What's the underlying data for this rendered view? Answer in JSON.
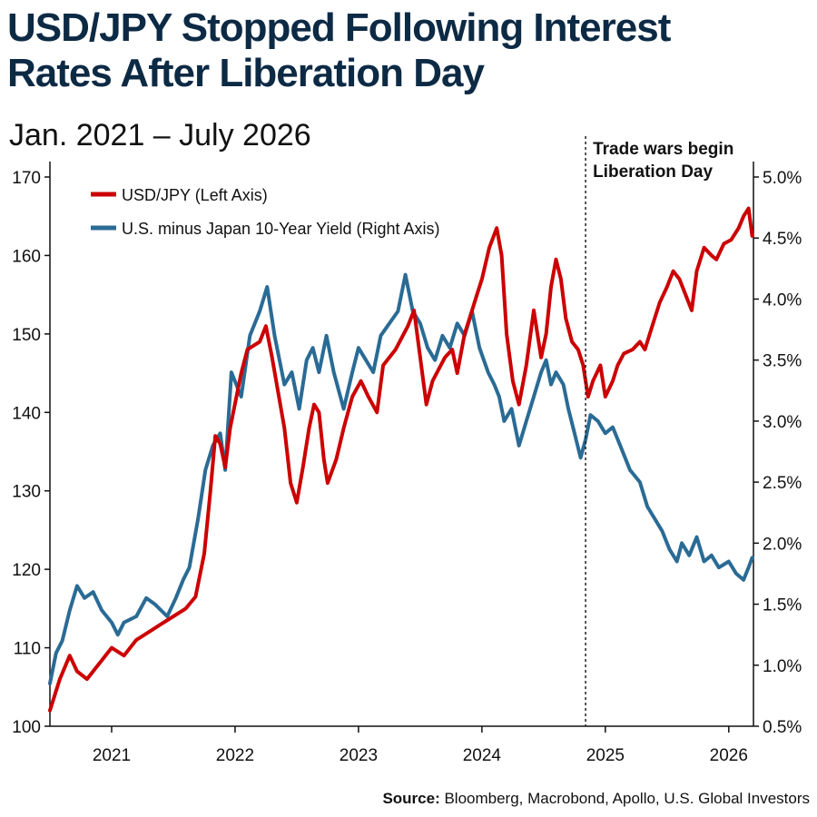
{
  "chart_data": {
    "type": "line",
    "title_line1": "USD/JPY Stopped Following Interest",
    "title_line2": "Rates After Liberation Day",
    "subtitle": "Jan. 2021 – July 2026",
    "source_label": "Source:",
    "source_text": " Bloomberg, Macrobond, Apollo, U.S. Global Investors",
    "x_range": [
      2020.5,
      2026.2
    ],
    "x_ticks": [
      "2021",
      "2022",
      "2023",
      "2024",
      "2025",
      "2026"
    ],
    "y_left": {
      "range": [
        100,
        172
      ],
      "ticks": [
        "100",
        "110",
        "120",
        "130",
        "140",
        "150",
        "160",
        "170"
      ]
    },
    "y_right": {
      "range": [
        0.5,
        5.1
      ],
      "ticks": [
        "0.5%",
        "1.0%",
        "1.5%",
        "2.0%",
        "2.5%",
        "3.0%",
        "3.5%",
        "4.0%",
        "4.5%",
        "5.0%"
      ]
    },
    "annotation": {
      "x": 2024.84,
      "line1": "Trade wars begin",
      "line2": "Liberation Day"
    },
    "series": [
      {
        "name": "USD/JPY (Left Axis)",
        "axis": "left",
        "color": "#cc0000",
        "points": [
          [
            2020.5,
            102.0
          ],
          [
            2020.58,
            106.0
          ],
          [
            2020.66,
            109.0
          ],
          [
            2020.72,
            107.0
          ],
          [
            2020.8,
            106.0
          ],
          [
            2020.9,
            108.0
          ],
          [
            2021.0,
            110.0
          ],
          [
            2021.1,
            109.0
          ],
          [
            2021.2,
            111.0
          ],
          [
            2021.3,
            112.0
          ],
          [
            2021.4,
            113.0
          ],
          [
            2021.5,
            114.0
          ],
          [
            2021.6,
            115.0
          ],
          [
            2021.68,
            116.5
          ],
          [
            2021.75,
            122.0
          ],
          [
            2021.8,
            130.0
          ],
          [
            2021.84,
            137.0
          ],
          [
            2021.88,
            136.0
          ],
          [
            2021.92,
            133.0
          ],
          [
            2021.96,
            138.0
          ],
          [
            2022.05,
            145.0
          ],
          [
            2022.1,
            148.0
          ],
          [
            2022.2,
            149.0
          ],
          [
            2022.25,
            151.0
          ],
          [
            2022.3,
            147.0
          ],
          [
            2022.4,
            138.0
          ],
          [
            2022.45,
            131.0
          ],
          [
            2022.5,
            128.5
          ],
          [
            2022.55,
            133.0
          ],
          [
            2022.6,
            138.0
          ],
          [
            2022.64,
            141.0
          ],
          [
            2022.68,
            140.0
          ],
          [
            2022.72,
            134.0
          ],
          [
            2022.75,
            131.0
          ],
          [
            2022.82,
            134.0
          ],
          [
            2022.88,
            138.0
          ],
          [
            2022.95,
            142.0
          ],
          [
            2023.02,
            144.0
          ],
          [
            2023.08,
            142.0
          ],
          [
            2023.15,
            140.0
          ],
          [
            2023.2,
            146.0
          ],
          [
            2023.3,
            148.0
          ],
          [
            2023.4,
            151.0
          ],
          [
            2023.45,
            153.0
          ],
          [
            2023.5,
            147.0
          ],
          [
            2023.55,
            141.0
          ],
          [
            2023.6,
            144.0
          ],
          [
            2023.7,
            147.0
          ],
          [
            2023.76,
            148.0
          ],
          [
            2023.8,
            145.0
          ],
          [
            2023.86,
            150.0
          ],
          [
            2023.9,
            152.0
          ],
          [
            2023.96,
            155.0
          ],
          [
            2024.0,
            157.0
          ],
          [
            2024.06,
            161.0
          ],
          [
            2024.12,
            163.5
          ],
          [
            2024.16,
            160.0
          ],
          [
            2024.2,
            150.0
          ],
          [
            2024.25,
            144.0
          ],
          [
            2024.3,
            141.0
          ],
          [
            2024.36,
            146.0
          ],
          [
            2024.42,
            153.0
          ],
          [
            2024.48,
            147.0
          ],
          [
            2024.52,
            150.0
          ],
          [
            2024.56,
            156.0
          ],
          [
            2024.6,
            159.5
          ],
          [
            2024.64,
            157.0
          ],
          [
            2024.68,
            152.0
          ],
          [
            2024.73,
            149.0
          ],
          [
            2024.78,
            148.0
          ],
          [
            2024.82,
            146.0
          ],
          [
            2024.86,
            142.0
          ],
          [
            2024.9,
            144.0
          ],
          [
            2024.96,
            146.0
          ],
          [
            2025.0,
            142.0
          ],
          [
            2025.06,
            144.0
          ],
          [
            2025.1,
            146.0
          ],
          [
            2025.15,
            147.5
          ],
          [
            2025.22,
            148.0
          ],
          [
            2025.28,
            149.0
          ],
          [
            2025.32,
            148.0
          ],
          [
            2025.38,
            151.0
          ],
          [
            2025.44,
            154.0
          ],
          [
            2025.5,
            156.0
          ],
          [
            2025.55,
            158.0
          ],
          [
            2025.6,
            157.0
          ],
          [
            2025.65,
            155.0
          ],
          [
            2025.7,
            153.0
          ],
          [
            2025.74,
            158.0
          ],
          [
            2025.8,
            161.0
          ],
          [
            2025.86,
            160.0
          ],
          [
            2025.9,
            159.5
          ],
          [
            2025.96,
            161.5
          ],
          [
            2026.02,
            162.0
          ],
          [
            2026.08,
            163.5
          ],
          [
            2026.12,
            165.0
          ],
          [
            2026.16,
            166.0
          ],
          [
            2026.19,
            162.5
          ]
        ]
      },
      {
        "name": "U.S. minus Japan 10-Year Yield (Right Axis)",
        "axis": "right",
        "color": "#2a6b95",
        "points": [
          [
            2020.5,
            0.85
          ],
          [
            2020.55,
            1.1
          ],
          [
            2020.6,
            1.2
          ],
          [
            2020.66,
            1.45
          ],
          [
            2020.72,
            1.65
          ],
          [
            2020.78,
            1.55
          ],
          [
            2020.85,
            1.6
          ],
          [
            2020.92,
            1.45
          ],
          [
            2021.0,
            1.35
          ],
          [
            2021.05,
            1.25
          ],
          [
            2021.1,
            1.35
          ],
          [
            2021.2,
            1.4
          ],
          [
            2021.28,
            1.55
          ],
          [
            2021.35,
            1.5
          ],
          [
            2021.45,
            1.4
          ],
          [
            2021.52,
            1.55
          ],
          [
            2021.58,
            1.7
          ],
          [
            2021.63,
            1.8
          ],
          [
            2021.7,
            2.2
          ],
          [
            2021.76,
            2.6
          ],
          [
            2021.82,
            2.8
          ],
          [
            2021.88,
            2.9
          ],
          [
            2021.92,
            2.6
          ],
          [
            2021.97,
            3.4
          ],
          [
            2022.05,
            3.2
          ],
          [
            2022.12,
            3.7
          ],
          [
            2022.2,
            3.9
          ],
          [
            2022.26,
            4.1
          ],
          [
            2022.32,
            3.7
          ],
          [
            2022.4,
            3.3
          ],
          [
            2022.46,
            3.4
          ],
          [
            2022.52,
            3.1
          ],
          [
            2022.58,
            3.5
          ],
          [
            2022.63,
            3.6
          ],
          [
            2022.68,
            3.4
          ],
          [
            2022.74,
            3.7
          ],
          [
            2022.8,
            3.4
          ],
          [
            2022.88,
            3.1
          ],
          [
            2022.95,
            3.4
          ],
          [
            2023.0,
            3.6
          ],
          [
            2023.06,
            3.5
          ],
          [
            2023.12,
            3.4
          ],
          [
            2023.18,
            3.7
          ],
          [
            2023.25,
            3.8
          ],
          [
            2023.32,
            3.9
          ],
          [
            2023.38,
            4.2
          ],
          [
            2023.44,
            3.9
          ],
          [
            2023.5,
            3.8
          ],
          [
            2023.56,
            3.6
          ],
          [
            2023.62,
            3.5
          ],
          [
            2023.68,
            3.7
          ],
          [
            2023.74,
            3.6
          ],
          [
            2023.8,
            3.8
          ],
          [
            2023.86,
            3.7
          ],
          [
            2023.92,
            3.9
          ],
          [
            2023.98,
            3.6
          ],
          [
            2024.05,
            3.4
          ],
          [
            2024.1,
            3.3
          ],
          [
            2024.14,
            3.2
          ],
          [
            2024.18,
            3.0
          ],
          [
            2024.24,
            3.1
          ],
          [
            2024.3,
            2.8
          ],
          [
            2024.36,
            3.0
          ],
          [
            2024.42,
            3.2
          ],
          [
            2024.48,
            3.4
          ],
          [
            2024.52,
            3.5
          ],
          [
            2024.56,
            3.3
          ],
          [
            2024.6,
            3.4
          ],
          [
            2024.66,
            3.3
          ],
          [
            2024.7,
            3.1
          ],
          [
            2024.75,
            2.9
          ],
          [
            2024.8,
            2.7
          ],
          [
            2024.84,
            2.85
          ],
          [
            2024.88,
            3.05
          ],
          [
            2024.94,
            3.0
          ],
          [
            2025.0,
            2.9
          ],
          [
            2025.06,
            2.95
          ],
          [
            2025.12,
            2.8
          ],
          [
            2025.2,
            2.6
          ],
          [
            2025.28,
            2.5
          ],
          [
            2025.34,
            2.3
          ],
          [
            2025.4,
            2.2
          ],
          [
            2025.46,
            2.1
          ],
          [
            2025.52,
            1.95
          ],
          [
            2025.58,
            1.85
          ],
          [
            2025.62,
            2.0
          ],
          [
            2025.68,
            1.9
          ],
          [
            2025.74,
            2.05
          ],
          [
            2025.8,
            1.85
          ],
          [
            2025.86,
            1.9
          ],
          [
            2025.92,
            1.8
          ],
          [
            2026.0,
            1.85
          ],
          [
            2026.06,
            1.75
          ],
          [
            2026.12,
            1.7
          ],
          [
            2026.16,
            1.8
          ],
          [
            2026.19,
            1.88
          ]
        ]
      }
    ]
  }
}
